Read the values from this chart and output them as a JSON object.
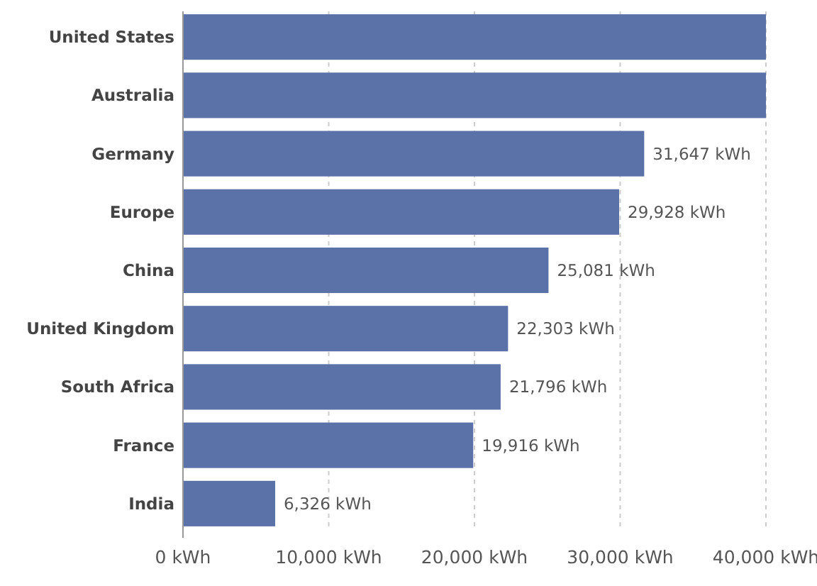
{
  "chart_data": {
    "type": "bar",
    "orientation": "horizontal",
    "categories": [
      "United States",
      "Australia",
      "Germany",
      "Europe",
      "China",
      "United Kingdom",
      "South Africa",
      "France",
      "India"
    ],
    "values": [
      40000,
      40000,
      31647,
      29928,
      25081,
      22303,
      21796,
      19916,
      6326
    ],
    "value_labels": [
      null,
      null,
      "31,647 kWh",
      "29,928 kWh",
      "25,081 kWh",
      "22,303 kWh",
      "21,796 kWh",
      "19,916 kWh",
      "6,326 kWh"
    ],
    "color": "#5b72a8",
    "xlim": [
      0,
      40000
    ],
    "xticks": [
      {
        "value": 0,
        "label": "0 kWh"
      },
      {
        "value": 10000,
        "label": "10,000 kWh"
      },
      {
        "value": 20000,
        "label": "20,000 kWh"
      },
      {
        "value": 30000,
        "label": "30,000 kWh"
      },
      {
        "value": 40000,
        "label": "40,000 kWh"
      }
    ],
    "grid": "x"
  }
}
